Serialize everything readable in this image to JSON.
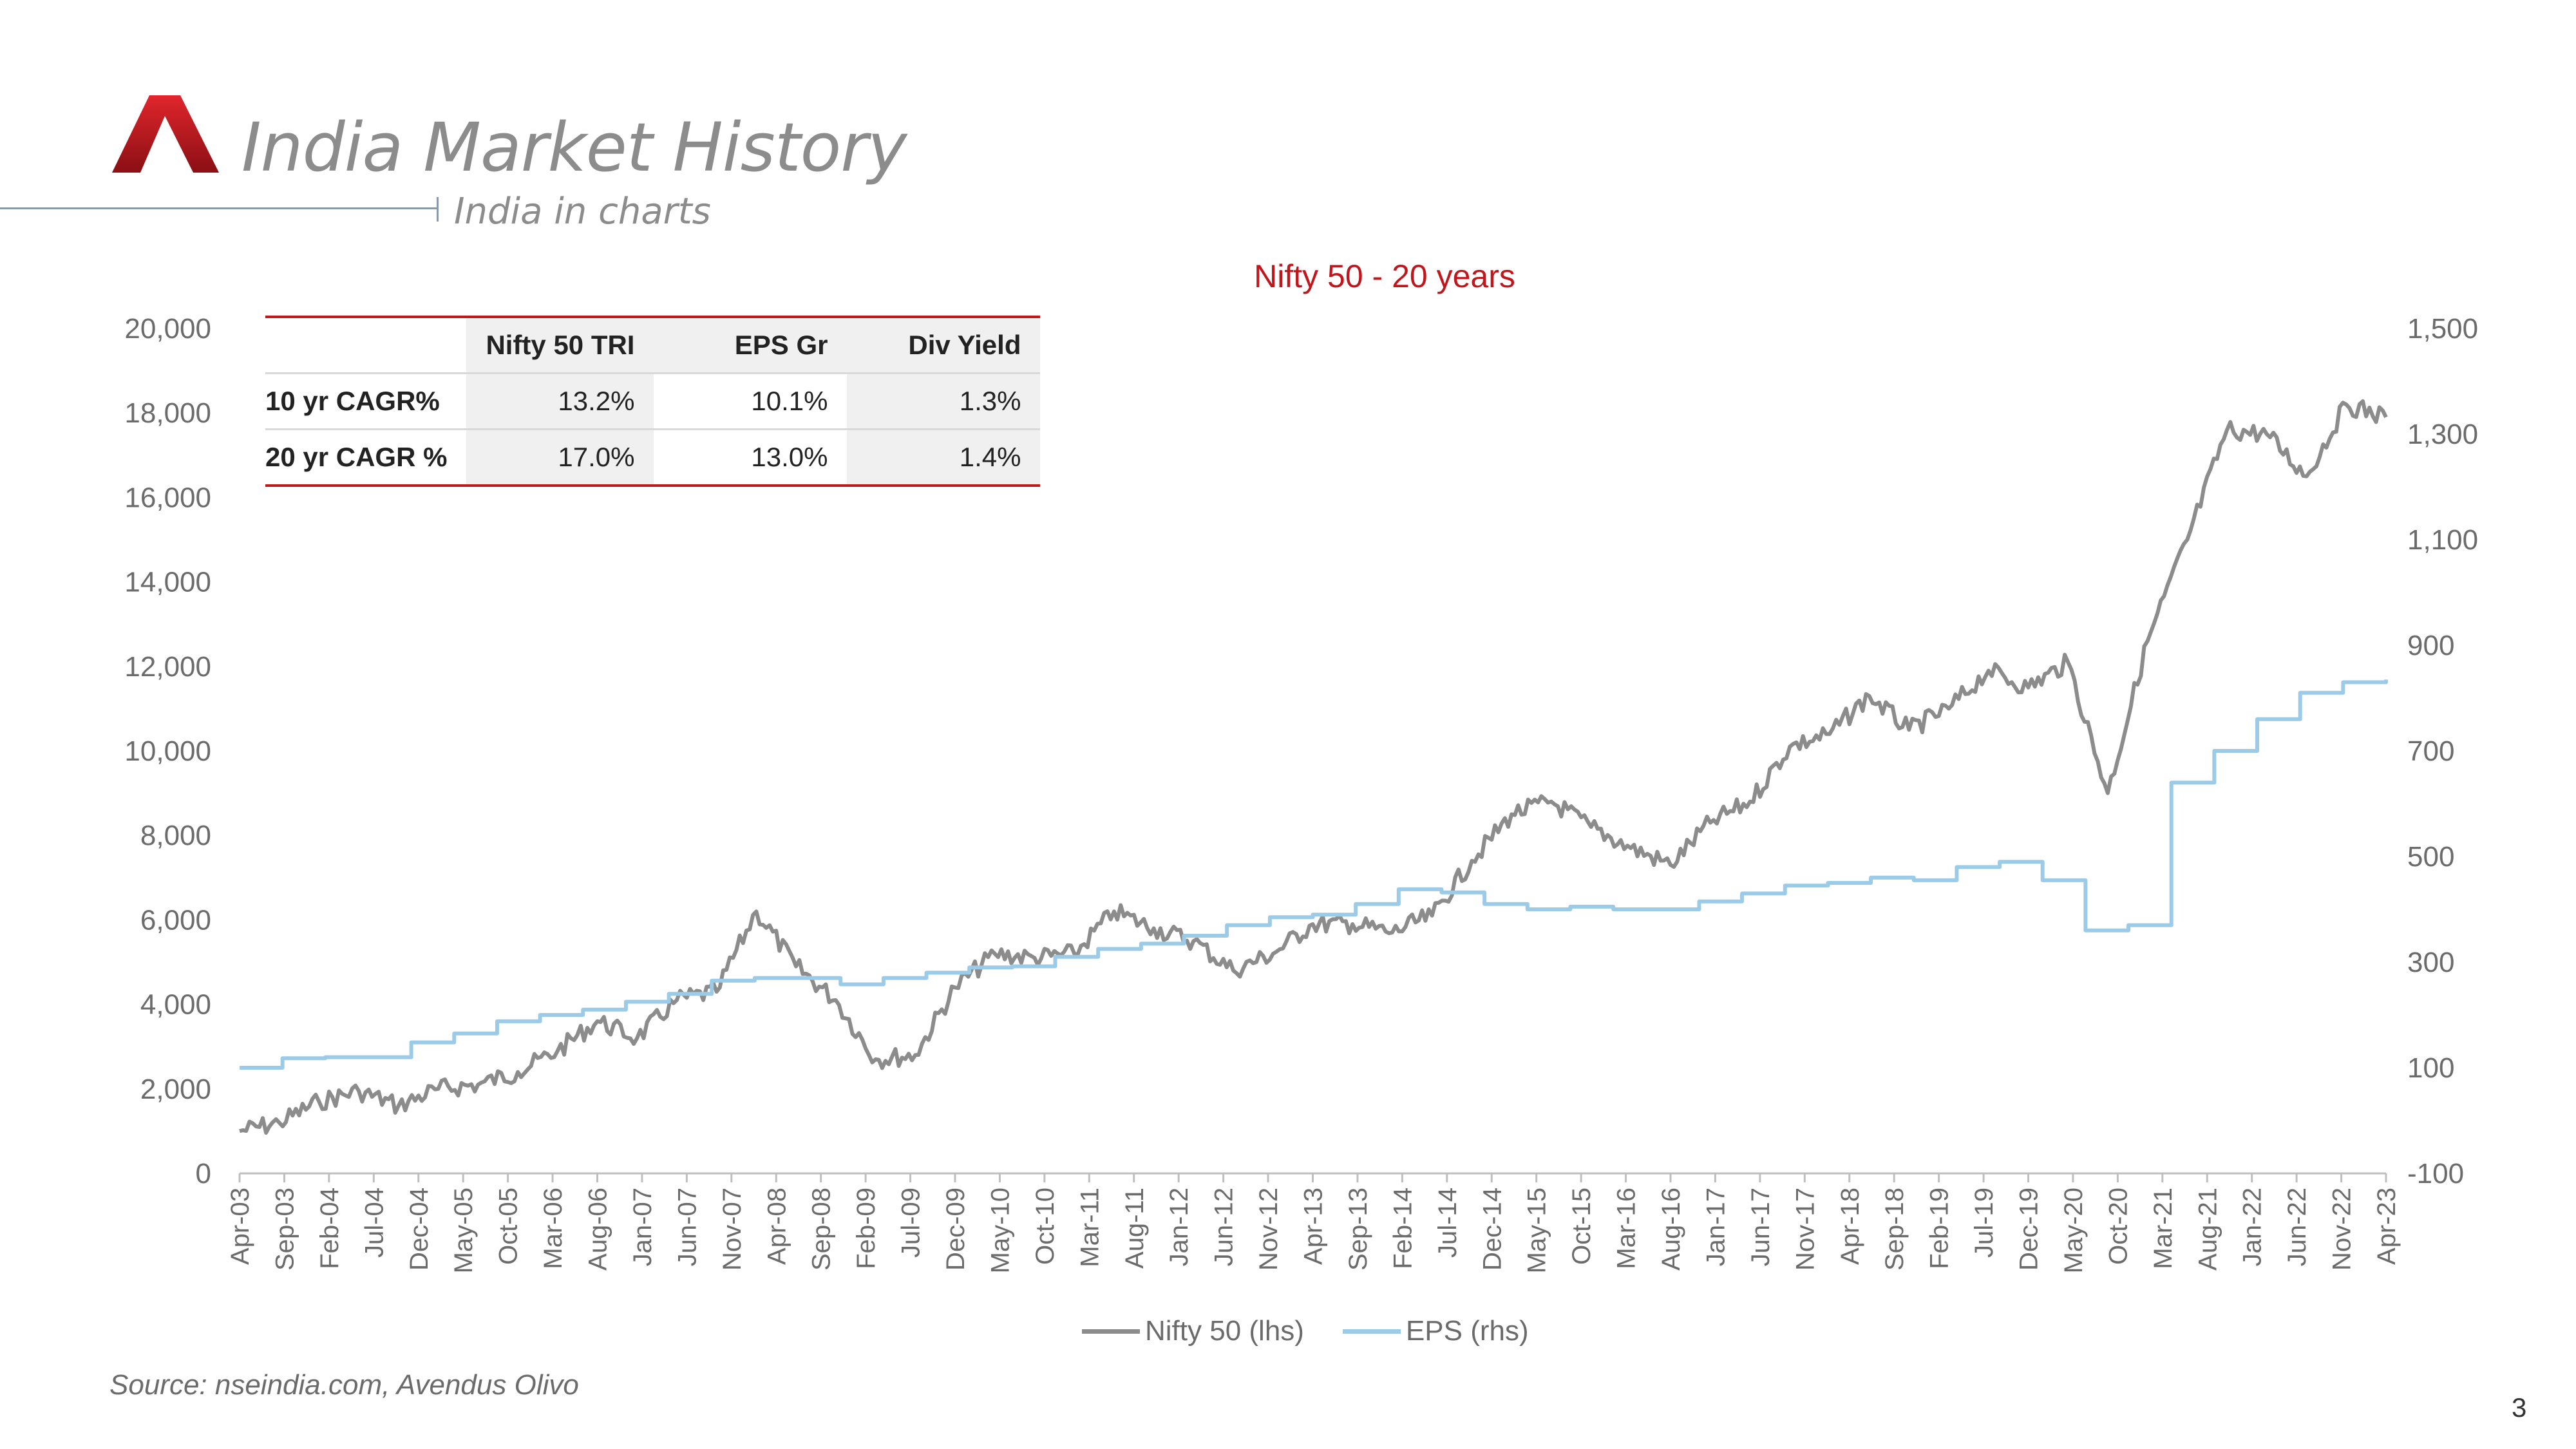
{
  "header": {
    "title": "India Market History",
    "subtitle": "India in charts",
    "logo": "avendus-logo"
  },
  "colors": {
    "accent": "#c0171d",
    "nifty": "#8c8c8c",
    "eps": "#9ccbe8",
    "axis": "#6b6b6b"
  },
  "table": {
    "headers": [
      "",
      "Nifty 50 TRI",
      "EPS Gr",
      "Div Yield"
    ],
    "rows": [
      {
        "label": "10 yr CAGR%",
        "values": [
          "13.2%",
          "10.1%",
          "1.3%"
        ]
      },
      {
        "label": "20 yr CAGR %",
        "values": [
          "17.0%",
          "13.0%",
          "1.4%"
        ]
      }
    ]
  },
  "chart_data": {
    "type": "line",
    "title": "Nifty 50 - 20 years",
    "xlabel": "",
    "ylabel": "",
    "y_left_lim": [
      0,
      20000
    ],
    "y_right_lim": [
      -100,
      1500
    ],
    "y_left_ticks": [
      "0",
      "2,000",
      "4,000",
      "6,000",
      "8,000",
      "10,000",
      "12,000",
      "14,000",
      "16,000",
      "18,000",
      "20,000"
    ],
    "y_right_ticks": [
      "-100",
      "100",
      "300",
      "500",
      "700",
      "900",
      "1,100",
      "1,300",
      "1,500"
    ],
    "x_ticks": [
      "Apr-03",
      "Sep-03",
      "Feb-04",
      "Jul-04",
      "Dec-04",
      "May-05",
      "Oct-05",
      "Mar-06",
      "Aug-06",
      "Jan-07",
      "Jun-07",
      "Nov-07",
      "Apr-08",
      "Sep-08",
      "Feb-09",
      "Jul-09",
      "Dec-09",
      "May-10",
      "Oct-10",
      "Mar-11",
      "Aug-11",
      "Jan-12",
      "Jun-12",
      "Nov-12",
      "Apr-13",
      "Sep-13",
      "Feb-14",
      "Jul-14",
      "Dec-14",
      "May-15",
      "Oct-15",
      "Mar-16",
      "Aug-16",
      "Jan-17",
      "Jun-17",
      "Nov-17",
      "Apr-18",
      "Sep-18",
      "Feb-19",
      "Jul-19",
      "Dec-19",
      "May-20",
      "Oct-20",
      "Mar-21",
      "Aug-21",
      "Jan-22",
      "Jun-22",
      "Nov-22",
      "Apr-23"
    ],
    "grid": false,
    "legend": "bottom-center",
    "series": [
      {
        "name": "Nifty 50 (lhs)",
        "axis": "left",
        "values": [
          1000,
          1200,
          1700,
          1950,
          1600,
          2000,
          2100,
          2400,
          2900,
          3600,
          3200,
          4100,
          4300,
          6200,
          4900,
          4100,
          2700,
          2800,
          4400,
          5200,
          5100,
          5200,
          6200,
          5800,
          5500,
          4800,
          5200,
          5900,
          5900,
          5700,
          6100,
          7400,
          8500,
          8800,
          8200,
          7700,
          7300,
          8300,
          8800,
          10100,
          10400,
          11300,
          10500,
          11000,
          11900,
          11500,
          12100,
          9000,
          12600,
          15000,
          17600,
          17500,
          16500,
          18200,
          17900
        ]
      },
      {
        "name": "EPS (rhs)",
        "axis": "right",
        "values": [
          100,
          118,
          120,
          120,
          148,
          165,
          188,
          200,
          210,
          225,
          240,
          265,
          270,
          270,
          258,
          270,
          280,
          290,
          292,
          310,
          325,
          335,
          350,
          370,
          385,
          390,
          410,
          438,
          432,
          410,
          400,
          405,
          400,
          400,
          415,
          430,
          445,
          450,
          460,
          455,
          480,
          490,
          455,
          360,
          370,
          640,
          700,
          760,
          810,
          830,
          835
        ]
      }
    ]
  },
  "legend_labels": {
    "nifty": "Nifty 50 (lhs)",
    "eps": "EPS (rhs)"
  },
  "footer": {
    "source": "Source: nseindia.com, Avendus Olivo",
    "page_number": "3"
  }
}
